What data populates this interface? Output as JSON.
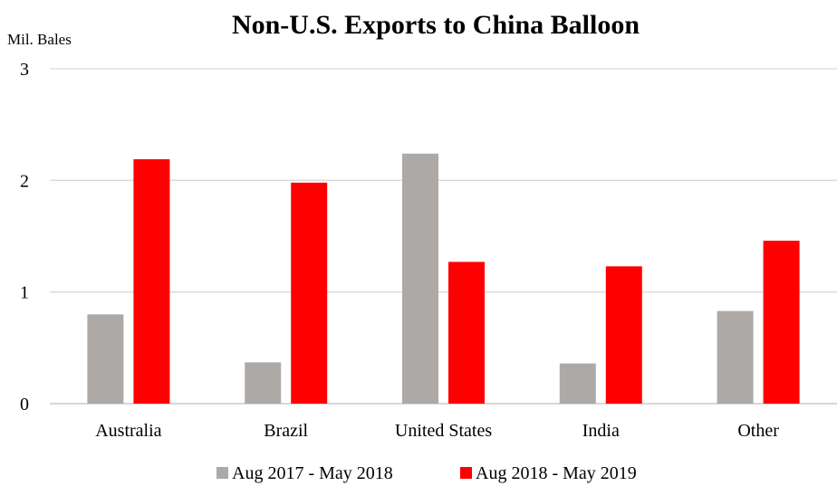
{
  "chart_data": {
    "type": "bar",
    "title": "Non-U.S. Exports to China Balloon",
    "ylabel": "Mil. Bales",
    "xlabel": "",
    "categories": [
      "Australia",
      "Brazil",
      "United States",
      "India",
      "Other"
    ],
    "series": [
      {
        "name": "Aug 2017 - May 2018",
        "color": "#ada9a7",
        "values": [
          0.8,
          0.37,
          2.24,
          0.36,
          0.83
        ]
      },
      {
        "name": "Aug 2018 - May 2019",
        "color": "#ff0000",
        "values": [
          2.19,
          1.98,
          1.27,
          1.23,
          1.46
        ]
      }
    ],
    "ylim": [
      0,
      3
    ],
    "yticks": [
      "0",
      "1",
      "2",
      "3"
    ],
    "grid": true,
    "legend_position": "bottom"
  }
}
